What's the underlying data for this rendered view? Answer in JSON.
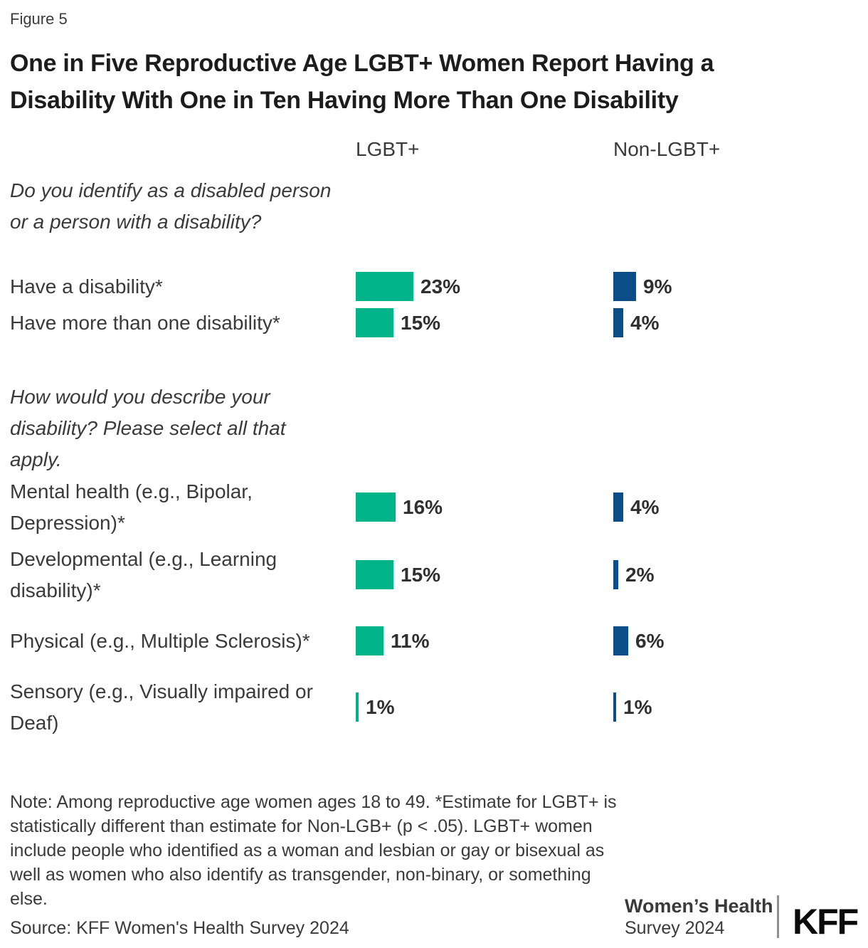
{
  "figure_label": "Figure 5",
  "title": {
    "line1": "One in Five Reproductive Age LGBT+ Women Report Having a",
    "line2": "Disability With One in Ten Having More Than One Disability"
  },
  "columns": {
    "lgbt": "LGBT+",
    "non_lgbt": "Non-LGBT+"
  },
  "colors": {
    "lgbt_bar": "#00B388",
    "non_lgbt_bar": "#0B4E87"
  },
  "sections": [
    {
      "question": "Do you identify as a disabled person or a person with a disability?",
      "rows": [
        {
          "label": "Have a disability*",
          "lgbt": 23,
          "non_lgbt": 9
        },
        {
          "label": "Have more than one disability*",
          "lgbt": 15,
          "non_lgbt": 4
        }
      ]
    },
    {
      "question": "How would you describe your disability? Please select all that apply.",
      "rows": [
        {
          "label": "Mental health (e.g., Bipolar, Depression)*",
          "lgbt": 16,
          "non_lgbt": 4
        },
        {
          "label": "Developmental (e.g., Learning disability)*",
          "lgbt": 15,
          "non_lgbt": 2
        },
        {
          "label": "Physical (e.g., Multiple Sclerosis)*",
          "lgbt": 11,
          "non_lgbt": 6
        },
        {
          "label": "Sensory (e.g., Visually impaired or Deaf)",
          "lgbt": 1,
          "non_lgbt": 1
        }
      ]
    }
  ],
  "note": "Note: Among reproductive age women ages 18 to 49. *Estimate for LGBT+ is statistically different than estimate for Non-LGB+ (p < .05). LGBT+ women include people who identified as a woman and lesbian or gay or bisexual as well as women who also identify as transgender, non-binary, or something else.",
  "source": "Source: KFF Women's Health Survey 2024",
  "footer": {
    "program_line1": "Women’s Health",
    "program_line2": "Survey 2024",
    "logo_text": "KFF"
  },
  "chart_data": {
    "type": "bar",
    "orientation": "horizontal",
    "title": "One in Five Reproductive Age LGBT+ Women Report Having a Disability With One in Ten Having More Than One Disability",
    "unit": "%",
    "legend_position": "column-headers-top",
    "grid": false,
    "xlim": [
      0,
      25
    ],
    "groups": [
      {
        "question": "Do you identify as a disabled person or a person with a disability?",
        "categories": [
          "Have a disability*",
          "Have more than one disability*"
        ],
        "series": [
          {
            "name": "LGBT+",
            "color": "#00B388",
            "values": [
              23,
              15
            ]
          },
          {
            "name": "Non-LGBT+",
            "color": "#0B4E87",
            "values": [
              9,
              4
            ]
          }
        ]
      },
      {
        "question": "How would you describe your disability? Please select all that apply.",
        "categories": [
          "Mental health (e.g., Bipolar, Depression)*",
          "Developmental (e.g., Learning disability)*",
          "Physical (e.g., Multiple Sclerosis)*",
          "Sensory (e.g., Visually impaired or Deaf)"
        ],
        "series": [
          {
            "name": "LGBT+",
            "color": "#00B388",
            "values": [
              16,
              15,
              11,
              1
            ]
          },
          {
            "name": "Non-LGBT+",
            "color": "#0B4E87",
            "values": [
              4,
              2,
              6,
              1
            ]
          }
        ]
      }
    ]
  }
}
